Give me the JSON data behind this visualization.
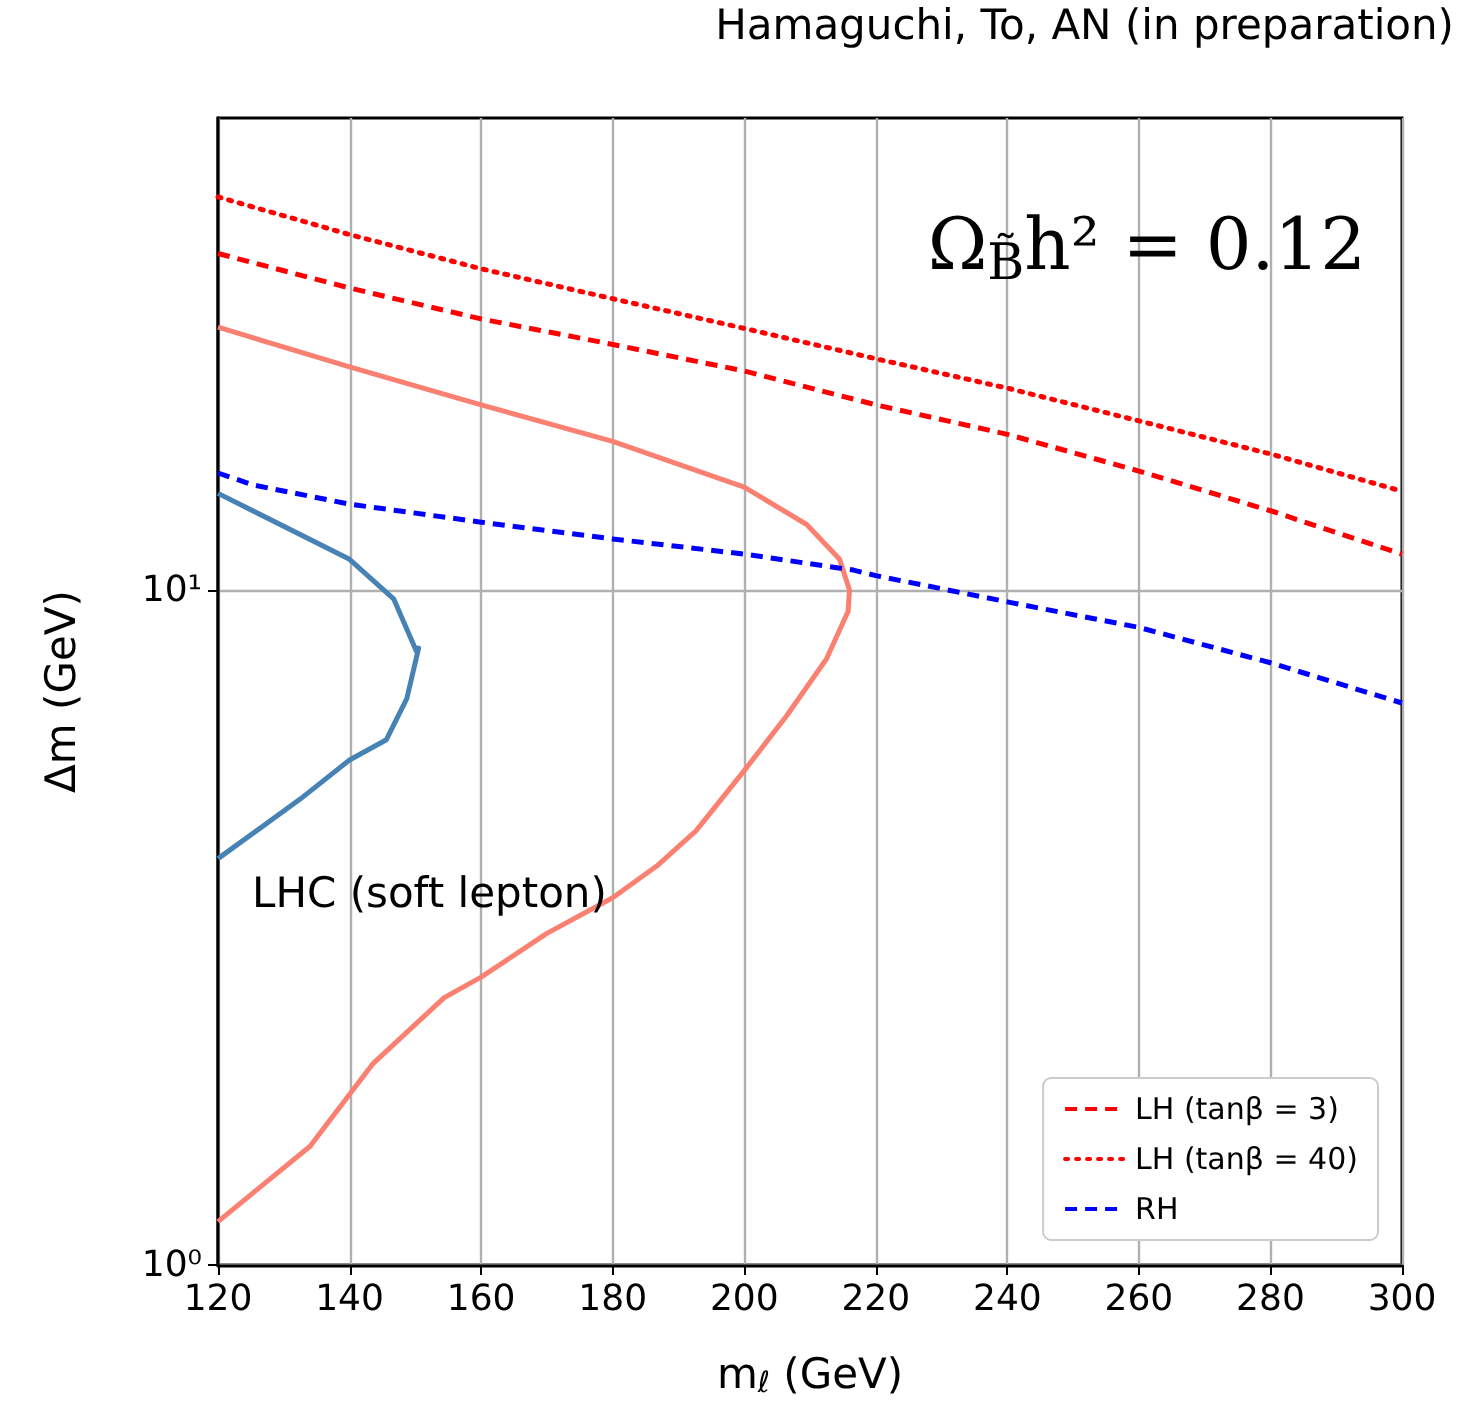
{
  "chart_data": {
    "type": "line",
    "xlabel": "m$_{ℓ}$ (GeV)",
    "ylabel": "Δm (GeV)",
    "annotations": [
      "Hamaguchi, To, AN (in preparation)",
      "Ω$_{B̃}$h² = 0.12",
      "LHC (soft lepton)"
    ],
    "xlim": [
      120,
      300
    ],
    "xticks": [
      120,
      140,
      160,
      180,
      200,
      220,
      240,
      260,
      280,
      300
    ],
    "ylim": [
      1,
      50
    ],
    "yticks": [
      {
        "value": 1,
        "label": "10⁰"
      },
      {
        "value": 10,
        "label": "10¹"
      }
    ],
    "log": "y",
    "grid": true,
    "legend": "bottom right",
    "marker": "none",
    "series": [
      {
        "name": "LH (tanβ = 3)",
        "color": "#ff0000",
        "line_style": "dashed",
        "x": [
          120,
          140,
          160,
          180,
          200,
          220,
          240,
          260,
          280,
          300
        ],
        "values": [
          31.5,
          28.0,
          25.2,
          23.1,
          21.1,
          18.8,
          17.0,
          15.0,
          13.1,
          11.3
        ]
      },
      {
        "name": "LH (tanβ = 40)",
        "color": "#ff0000",
        "line_style": "dotted",
        "x": [
          120,
          140,
          160,
          180,
          200,
          220,
          240,
          260,
          280,
          300
        ],
        "values": [
          38.2,
          33.6,
          29.9,
          27.0,
          24.4,
          22.0,
          19.9,
          17.8,
          15.9,
          14.0
        ]
      },
      {
        "name": "RH",
        "color": "#0000ff",
        "line_style": "dashed",
        "x": [
          120,
          125.4,
          140,
          160,
          180,
          200,
          216.6,
          220,
          240,
          260,
          280,
          300
        ],
        "values": [
          14.9,
          14.3,
          13.4,
          12.6,
          11.9,
          11.3,
          10.7,
          10.5,
          9.6,
          8.8,
          7.8,
          6.8
        ]
      },
      {
        "color": "#fa8072",
        "line_style": "solid",
        "x": [
          120,
          140,
          160,
          180,
          200,
          209.5,
          214.5,
          216,
          215.8,
          212.5,
          206.4,
          200,
          192.7,
          186.7,
          180,
          170,
          160,
          154.4,
          143.6,
          134,
          120
        ],
        "values": [
          24.5,
          21.4,
          18.8,
          16.6,
          14.2,
          12.5,
          11.1,
          10,
          9.3,
          7.9,
          6.5,
          5.4,
          4.4,
          3.9,
          3.5,
          3.1,
          2.67,
          2.49,
          1.99,
          1.5,
          1.16
        ]
      },
      {
        "color": "#4682b4",
        "line_style": "solid",
        "x": [
          120,
          140,
          146.7,
          150.2,
          150.5,
          148.7,
          145.6,
          140,
          132.5,
          120
        ],
        "values": [
          13.9,
          11.1,
          9.7,
          8.1,
          8.2,
          6.9,
          6.0,
          5.6,
          4.9,
          4.0
        ]
      }
    ]
  }
}
